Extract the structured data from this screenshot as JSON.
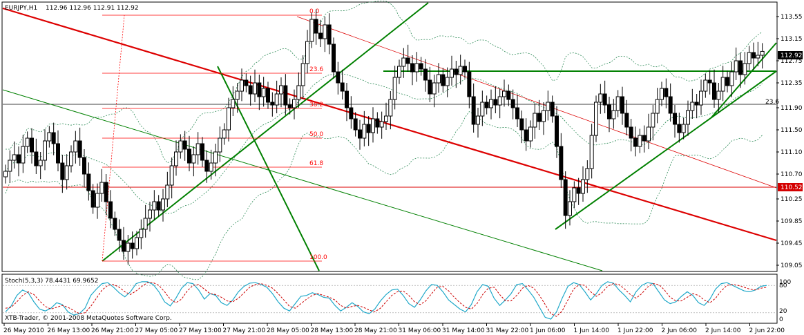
{
  "header": {
    "symbol": "EURJPY,H1",
    "ohlc": "112.96 112.96 112.91 112.92"
  },
  "stoch": {
    "label": "Stoch(5,3,3) 78.4431 69.9652",
    "levels": [
      "80",
      "20",
      "0",
      "100"
    ],
    "k": [
      22,
      35,
      58,
      70,
      64,
      44,
      28,
      24,
      30,
      42,
      38,
      22,
      15,
      18,
      30,
      58,
      72,
      84,
      86,
      76,
      64,
      55,
      66,
      84,
      88,
      88,
      82,
      66,
      44,
      35,
      52,
      74,
      86,
      84,
      70,
      50,
      62,
      58,
      42,
      36,
      48,
      66,
      78,
      85,
      86,
      82,
      76,
      62,
      44,
      30,
      24,
      40,
      56,
      58,
      64,
      60,
      54,
      52,
      36,
      24,
      32,
      42,
      34,
      22,
      18,
      28,
      46,
      60,
      70,
      72,
      58,
      40,
      32,
      48,
      68,
      82,
      80,
      66,
      48,
      38,
      28,
      22,
      38,
      66,
      82,
      78,
      52,
      36,
      48,
      62,
      82,
      84,
      70,
      54,
      32,
      10,
      6,
      22,
      52,
      78,
      86,
      82,
      66,
      48,
      62,
      80,
      88,
      85,
      70,
      58,
      44,
      66,
      80,
      86,
      84,
      66,
      48,
      40,
      44,
      56,
      66,
      58,
      42,
      36,
      50,
      72,
      84,
      86,
      80,
      74,
      68,
      66,
      70,
      78,
      80
    ],
    "d": [
      30,
      32,
      44,
      58,
      66,
      60,
      46,
      34,
      28,
      32,
      36,
      32,
      25,
      18,
      20,
      34,
      52,
      70,
      80,
      82,
      76,
      66,
      60,
      68,
      78,
      86,
      86,
      80,
      66,
      50,
      42,
      50,
      68,
      80,
      82,
      72,
      62,
      60,
      54,
      46,
      44,
      52,
      64,
      76,
      82,
      84,
      80,
      74,
      62,
      48,
      34,
      30,
      40,
      50,
      58,
      62,
      58,
      54,
      48,
      36,
      30,
      34,
      36,
      32,
      26,
      22,
      30,
      44,
      58,
      66,
      68,
      58,
      44,
      38,
      46,
      62,
      76,
      78,
      68,
      54,
      42,
      32,
      28,
      40,
      60,
      74,
      76,
      60,
      46,
      46,
      58,
      74,
      80,
      74,
      58,
      38,
      18,
      12,
      24,
      48,
      72,
      82,
      80,
      66,
      56,
      64,
      78,
      84,
      82,
      72,
      60,
      52,
      62,
      76,
      84,
      82,
      70,
      54,
      46,
      46,
      54,
      62,
      58,
      48,
      42,
      52,
      68,
      80,
      82,
      80,
      76,
      72,
      70,
      74,
      76
    ]
  },
  "price_axis": {
    "ticks": [
      "113.55",
      "113.15",
      "112.75",
      "112.35",
      "111.90",
      "111.50",
      "111.10",
      "110.70",
      "110.25",
      "109.85",
      "109.45",
      "109.05"
    ],
    "current_price_label": "112.92",
    "hline_label": "110.52"
  },
  "time_axis": {
    "ticks": [
      "26 May 2010",
      "26 May 13:00",
      "26 May 21:00",
      "27 May 05:00",
      "27 May 13:00",
      "27 May 21:00",
      "28 May 05:00",
      "28 May 13:00",
      "28 May 21:00",
      "31 May 06:00",
      "31 May 14:00",
      "31 May 22:00",
      "1 Jun 06:00",
      "1 Jun 14:00",
      "1 Jun 22:00",
      "2 Jun 06:00",
      "2 Jun 14:00",
      "2 Jun 22:00"
    ]
  },
  "fibonacci": {
    "levels": [
      "0.0",
      "23.6",
      "38.2",
      "50.0",
      "61.8",
      "100.0"
    ],
    "side_label": "23.6"
  },
  "footer": {
    "copyright": "XTB-Trader, © 2001-2008 MetaQuotes Software Corp."
  },
  "colors": {
    "bull": "#ffffff",
    "bear": "#000000",
    "grid": "#c0c0c0",
    "bands": "#2e8b57",
    "trend_green": "#008000",
    "trend_red": "#dd0000",
    "fib": "#ff0000",
    "stoch_main": "#1fa8c9",
    "stoch_signal": "#cc0000",
    "label_box": "#d40000"
  },
  "chart_data": {
    "type": "candlestick",
    "symbol": "EURJPY",
    "timeframe": "H1",
    "ylim": [
      108.95,
      113.8
    ],
    "close": [
      110.75,
      110.95,
      111.05,
      110.9,
      111.2,
      111.35,
      111.1,
      110.85,
      110.95,
      111.3,
      111.45,
      111.25,
      110.9,
      110.6,
      110.85,
      111.1,
      111.3,
      111.0,
      110.7,
      110.4,
      110.1,
      110.35,
      110.55,
      110.2,
      109.9,
      109.7,
      109.5,
      109.3,
      109.45,
      109.35,
      109.55,
      109.7,
      109.9,
      110.05,
      110.2,
      110.05,
      110.25,
      110.5,
      110.85,
      111.1,
      111.3,
      111.15,
      110.9,
      111.05,
      111.25,
      110.95,
      110.75,
      110.9,
      111.1,
      111.35,
      111.5,
      111.9,
      112.05,
      112.2,
      112.4,
      112.3,
      112.15,
      112.35,
      112.1,
      112.25,
      112.0,
      111.95,
      112.15,
      112.3,
      111.95,
      111.9,
      112.05,
      112.3,
      112.7,
      113.1,
      113.5,
      113.25,
      113.15,
      113.4,
      113.05,
      112.55,
      112.35,
      112.2,
      111.9,
      111.7,
      111.5,
      111.35,
      111.6,
      111.45,
      111.7,
      111.55,
      111.65,
      111.75,
      112.05,
      112.45,
      112.65,
      112.8,
      112.7,
      112.55,
      112.7,
      112.6,
      112.4,
      112.15,
      112.35,
      112.5,
      112.3,
      112.45,
      112.6,
      112.5,
      112.65,
      112.55,
      112.1,
      111.6,
      111.75,
      112.0,
      111.9,
      112.05,
      111.95,
      112.1,
      112.2,
      112.05,
      111.9,
      111.7,
      111.5,
      111.3,
      111.55,
      111.8,
      111.65,
      111.85,
      112.0,
      111.75,
      111.2,
      110.6,
      109.95,
      110.2,
      110.45,
      110.35,
      110.6,
      110.8,
      111.4,
      112.0,
      112.15,
      111.95,
      111.7,
      111.85,
      112.1,
      111.8,
      111.55,
      111.35,
      111.2,
      111.4,
      111.3,
      111.55,
      111.8,
      112.05,
      112.25,
      112.1,
      111.8,
      111.6,
      111.45,
      111.6,
      111.85,
      112.0,
      111.95,
      112.2,
      112.4,
      112.35,
      112.05,
      112.2,
      112.45,
      112.3,
      112.55,
      112.75,
      112.5,
      112.7,
      112.9,
      112.8,
      112.85,
      112.92
    ],
    "series_overlays": [
      "Bollinger Bands",
      "Fibonacci Retracement",
      "Trend Lines",
      "Stochastic Oscillator"
    ]
  }
}
